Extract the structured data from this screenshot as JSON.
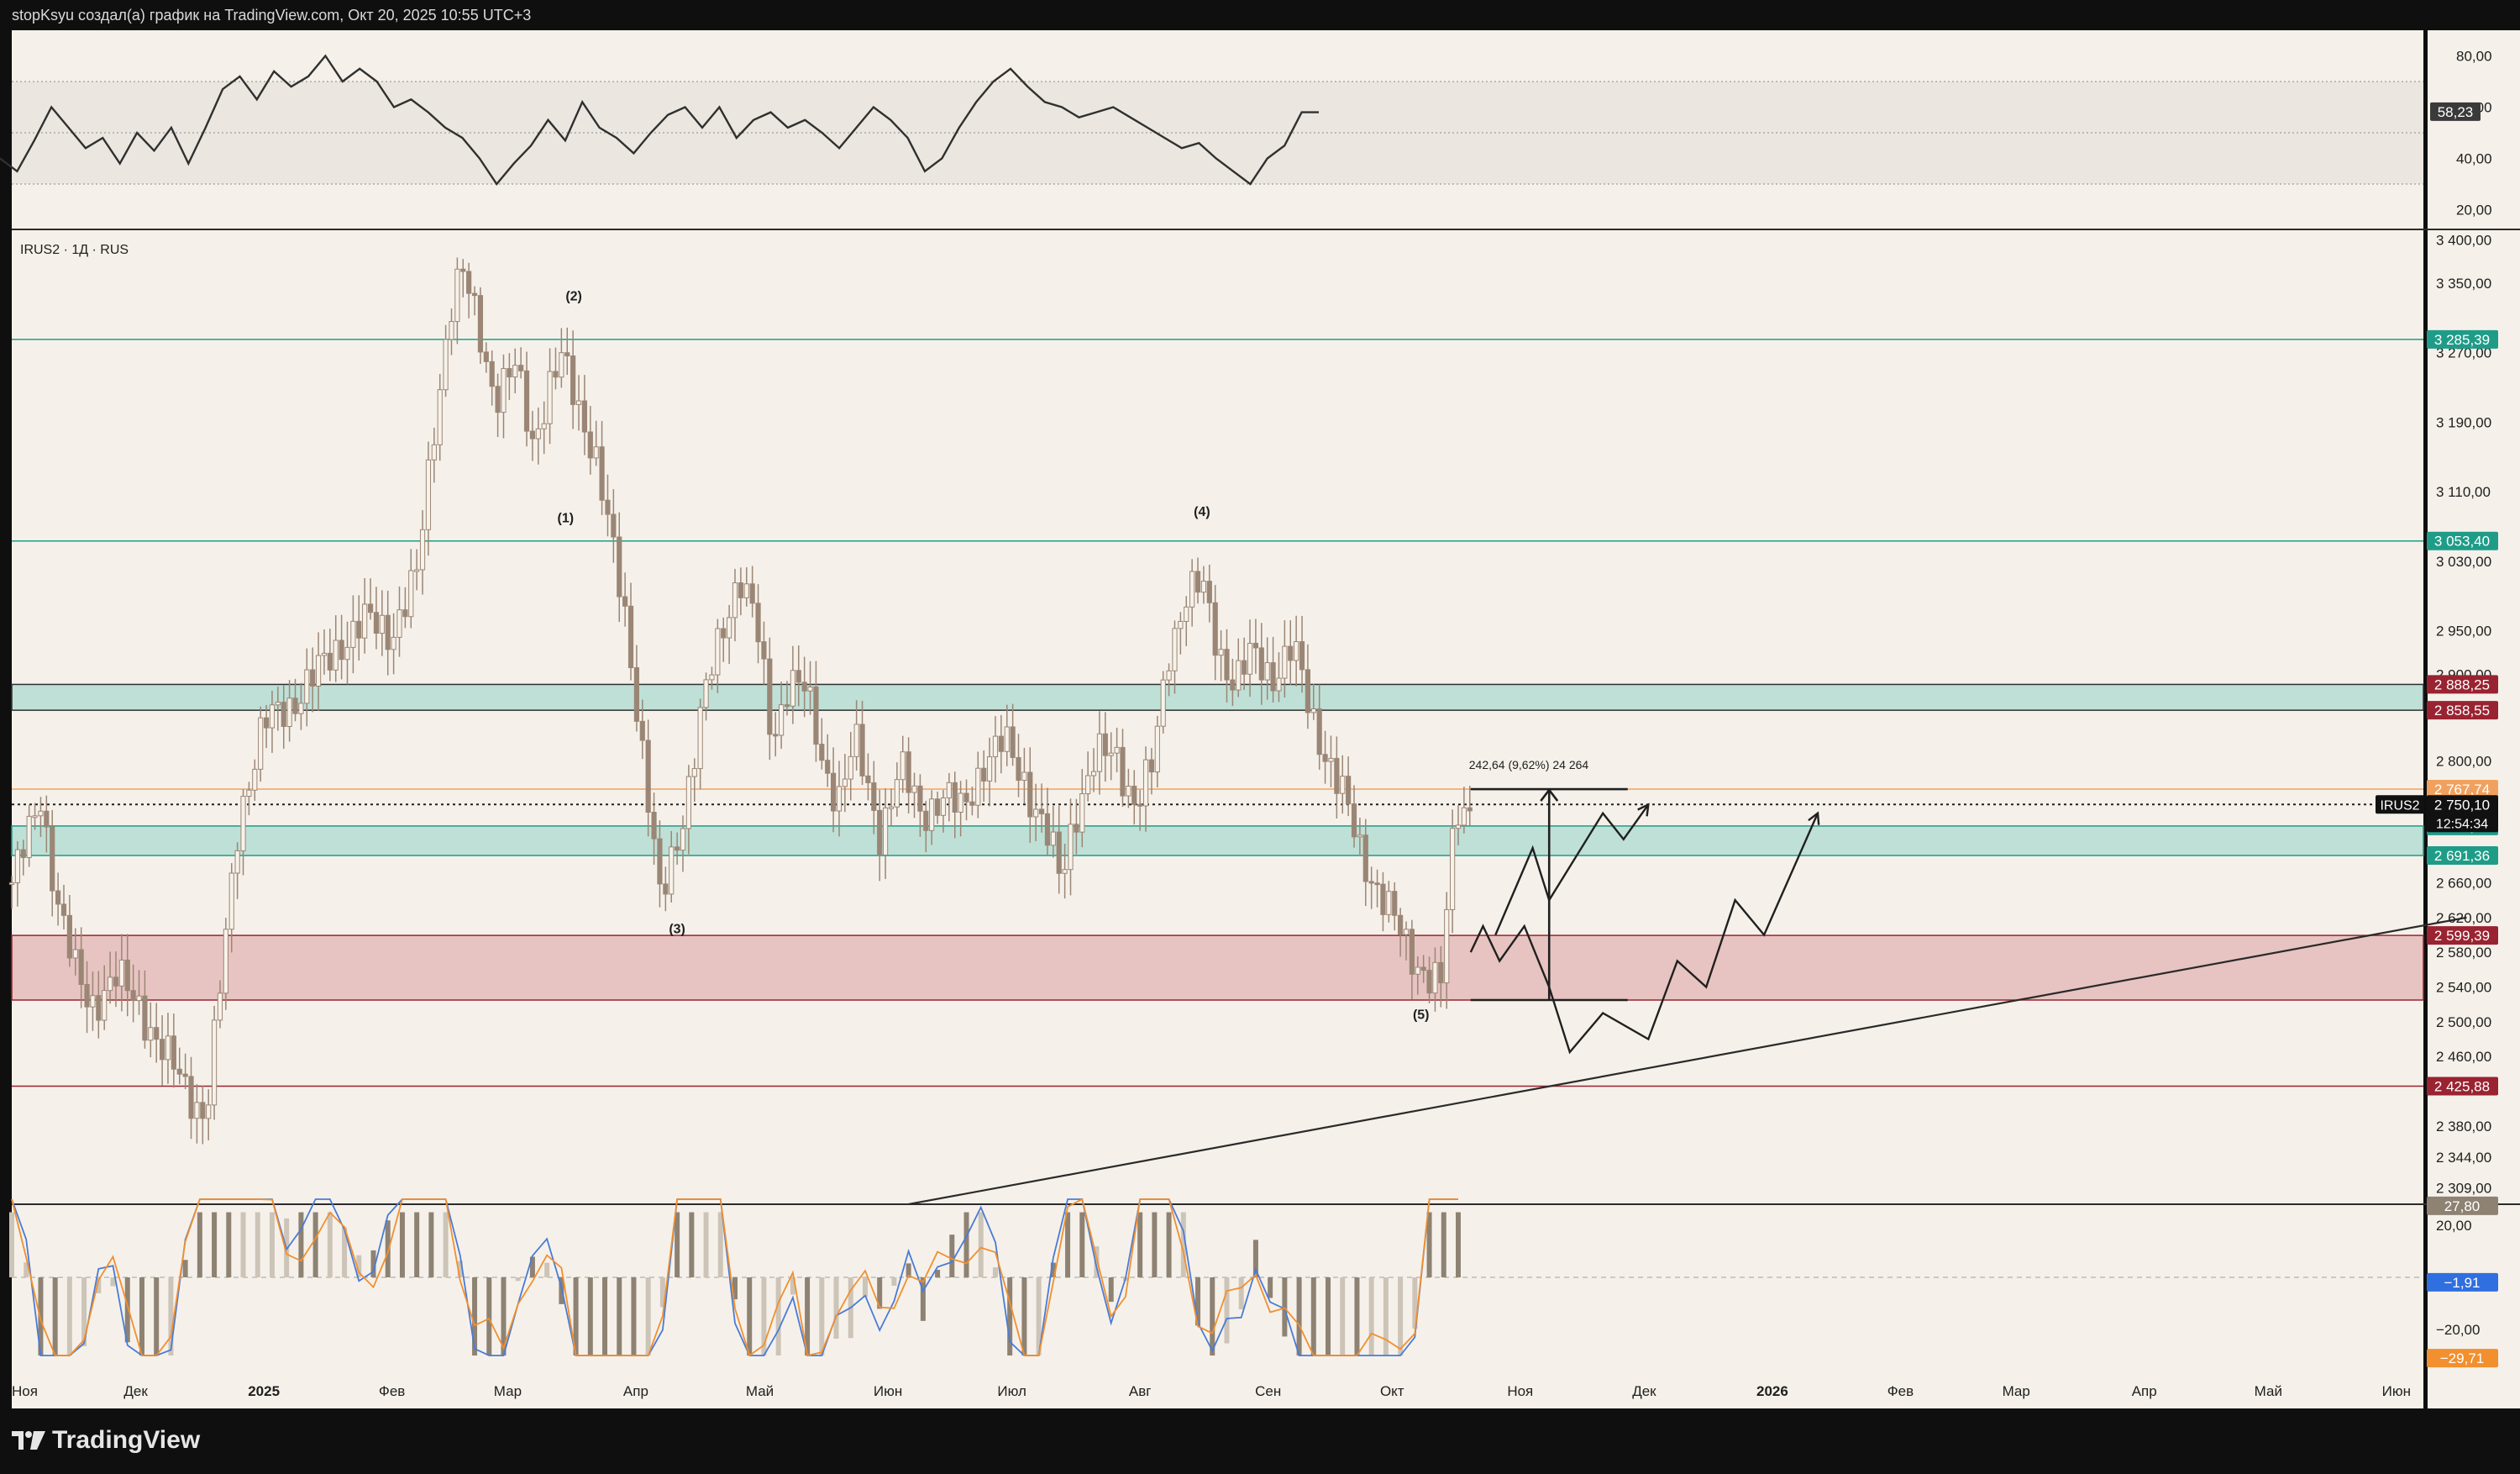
{
  "header": {
    "attribution": "stopKsyu создал(а) график на TradingView.com, Окт 20, 2025 10:55 UTC+3"
  },
  "symbol_legend": "IRUS2 · 1Д · RUS",
  "brand": "TradingView",
  "colors": {
    "background": "#f5f1ea",
    "candle": "#9b8676",
    "teal_line": "#1f9c88",
    "teal_zone": "#bfe0d6",
    "red_zone": "#e7c4c1",
    "red_label": "#9a2331",
    "orange_line": "#f1a15f",
    "macd_line": "#4a7bd6",
    "signal_line": "#f28f2e"
  },
  "rsi": {
    "axis_ticks": [
      "80,00",
      "60,00",
      "40,00",
      "20,00"
    ],
    "current_label": "58,23"
  },
  "price_axis": {
    "ticks": [
      "3 400,00",
      "3 350,00",
      "3 270,00",
      "3 190,00",
      "3 110,00",
      "3 030,00",
      "2 950,00",
      "2 900,00",
      "2 800,00",
      "2 660,00",
      "2 620,00",
      "2 580,00",
      "2 540,00",
      "2 500,00",
      "2 460,00",
      "2 380,00",
      "2 344,00",
      "2 309,00"
    ],
    "level_labels": {
      "teal_upper": "3 285,39",
      "teal_lower": "3 053,40",
      "zone1_top": "2 888,25",
      "zone1_bottom": "2 858,55",
      "orange": "2 767,74",
      "current": "2 750,10",
      "timer": "12:54:34",
      "zone2_top": "2 725,33",
      "zone2_bottom": "2 691,36",
      "red_zone_top": "2 599,39",
      "red_support": "2 425,88"
    },
    "current_symbol": "IRUS2"
  },
  "macd": {
    "axis_ticks": [
      "20,00",
      "−20,00"
    ],
    "histogram_label": "27,80",
    "macd_label": "−1,91",
    "signal_label": "−29,71"
  },
  "time_axis": {
    "labels": [
      "Ноя",
      "Дек",
      "2025",
      "Фев",
      "Мар",
      "Апр",
      "Май",
      "Июн",
      "Июл",
      "Авг",
      "Сен",
      "Окт",
      "Ноя",
      "Дек",
      "2026",
      "Фев",
      "Мар",
      "Апр",
      "Май",
      "Июн"
    ]
  },
  "annotations": {
    "waves": [
      "(1)",
      "(2)",
      "(3)",
      "(4)",
      "(5)"
    ],
    "measure": "242,64 (9,62%) 24 264"
  },
  "chart_data": {
    "type": "candlestick",
    "symbol": "IRUS2",
    "timeframe": "1Д",
    "ylim": [
      2290,
      3410
    ],
    "horizontal_levels": [
      {
        "name": "teal_upper",
        "value": 3285.39
      },
      {
        "name": "teal_lower",
        "value": 3053.4
      },
      {
        "name": "orange",
        "value": 2767.74
      },
      {
        "name": "current",
        "value": 2750.1
      },
      {
        "name": "red_support",
        "value": 2425.88
      }
    ],
    "zones": [
      {
        "name": "zone1",
        "from": 2858.55,
        "to": 2888.25
      },
      {
        "name": "zone2",
        "from": 2691.36,
        "to": 2725.33
      },
      {
        "name": "red_zone",
        "from": 2525,
        "to": 2599.39
      }
    ],
    "price_path": [
      [
        "2024-11-01",
        2660
      ],
      [
        "2024-11-05",
        2710
      ],
      [
        "2024-11-08",
        2760
      ],
      [
        "2024-11-12",
        2640
      ],
      [
        "2024-11-16",
        2560
      ],
      [
        "2024-11-20",
        2520
      ],
      [
        "2024-11-26",
        2550
      ],
      [
        "2024-12-02",
        2520
      ],
      [
        "2024-12-08",
        2460
      ],
      [
        "2024-12-14",
        2420
      ],
      [
        "2024-12-18",
        2390
      ],
      [
        "2024-12-22",
        2560
      ],
      [
        "2024-12-26",
        2740
      ],
      [
        "2025-01-01",
        2840
      ],
      [
        "2025-01-08",
        2870
      ],
      [
        "2025-01-14",
        2900
      ],
      [
        "2025-01-20",
        2940
      ],
      [
        "2025-01-26",
        2960
      ],
      [
        "2025-02-01",
        2950
      ],
      [
        "2025-02-07",
        3010
      ],
      [
        "2025-02-11",
        3180
      ],
      [
        "2025-02-15",
        3320
      ],
      [
        "2025-02-18",
        3360
      ],
      [
        "2025-02-22",
        3300
      ],
      [
        "2025-02-26",
        3220
      ],
      [
        "2025-03-03",
        3250
      ],
      [
        "2025-03-07",
        3170
      ],
      [
        "2025-03-11",
        3230
      ],
      [
        "2025-03-14",
        3260
      ],
      [
        "2025-03-18",
        3210
      ],
      [
        "2025-03-22",
        3160
      ],
      [
        "2025-03-26",
        3050
      ],
      [
        "2025-03-30",
        2950
      ],
      [
        "2025-04-03",
        2800
      ],
      [
        "2025-04-07",
        2630
      ],
      [
        "2025-04-12",
        2730
      ],
      [
        "2025-04-17",
        2860
      ],
      [
        "2025-04-22",
        2950
      ],
      [
        "2025-04-26",
        3020
      ],
      [
        "2025-04-30",
        2960
      ],
      [
        "2025-05-04",
        2820
      ],
      [
        "2025-05-08",
        2900
      ],
      [
        "2025-05-12",
        2880
      ],
      [
        "2025-05-16",
        2800
      ],
      [
        "2025-05-20",
        2760
      ],
      [
        "2025-05-24",
        2820
      ],
      [
        "2025-05-30",
        2720
      ],
      [
        "2025-06-04",
        2790
      ],
      [
        "2025-06-09",
        2740
      ],
      [
        "2025-06-14",
        2760
      ],
      [
        "2025-06-19",
        2740
      ],
      [
        "2025-06-24",
        2800
      ],
      [
        "2025-06-29",
        2820
      ],
      [
        "2025-07-04",
        2780
      ],
      [
        "2025-07-09",
        2720
      ],
      [
        "2025-07-13",
        2660
      ],
      [
        "2025-07-16",
        2740
      ],
      [
        "2025-07-21",
        2800
      ],
      [
        "2025-07-26",
        2810
      ],
      [
        "2025-07-31",
        2750
      ],
      [
        "2025-08-04",
        2790
      ],
      [
        "2025-08-08",
        2930
      ],
      [
        "2025-08-12",
        2990
      ],
      [
        "2025-08-16",
        3000
      ],
      [
        "2025-08-20",
        2930
      ],
      [
        "2025-08-24",
        2890
      ],
      [
        "2025-08-28",
        2920
      ],
      [
        "2025-09-02",
        2900
      ],
      [
        "2025-09-07",
        2930
      ],
      [
        "2025-09-11",
        2860
      ],
      [
        "2025-09-15",
        2810
      ],
      [
        "2025-09-19",
        2760
      ],
      [
        "2025-09-23",
        2700
      ],
      [
        "2025-09-27",
        2660
      ],
      [
        "2025-10-01",
        2620
      ],
      [
        "2025-10-05",
        2580
      ],
      [
        "2025-10-09",
        2560
      ],
      [
        "2025-10-13",
        2540
      ],
      [
        "2025-10-15",
        2680
      ],
      [
        "2025-10-17",
        2745
      ],
      [
        "2025-10-20",
        2750
      ]
    ],
    "projections": [
      [
        [
          "2025-10-20",
          2580
        ],
        [
          "2025-10-23",
          2610
        ],
        [
          "2025-10-27",
          2570
        ],
        [
          "2025-11-02",
          2610
        ],
        [
          "2025-11-08",
          2540
        ],
        [
          "2025-11-13",
          2465
        ],
        [
          "2025-11-21",
          2510
        ],
        [
          "2025-12-02",
          2480
        ],
        [
          "2025-12-09",
          2570
        ],
        [
          "2025-12-16",
          2540
        ],
        [
          "2025-12-23",
          2640
        ],
        [
          "2025-12-30",
          2600
        ],
        [
          "2026-01-12",
          2740
        ]
      ],
      [
        [
          "2025-10-26",
          2600
        ],
        [
          "2025-11-04",
          2700
        ],
        [
          "2025-11-08",
          2640
        ],
        [
          "2025-11-21",
          2740
        ],
        [
          "2025-11-26",
          2710
        ],
        [
          "2025-12-02",
          2750
        ]
      ]
    ],
    "measure": {
      "from": 2525,
      "to": 2767.74,
      "change": 242.64,
      "percent": 9.62
    },
    "trendline": [
      [
        "2025-06-06",
        2290
      ],
      [
        "2026-06-18",
        2620
      ]
    ]
  }
}
